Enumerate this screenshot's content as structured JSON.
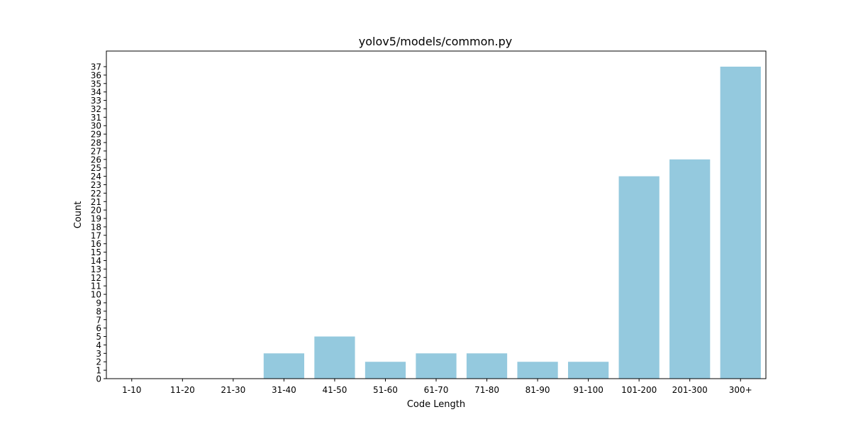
{
  "chart_data": {
    "type": "bar",
    "title": "yolov5/models/common.py",
    "xlabel": "Code Length",
    "ylabel": "Count",
    "categories": [
      "1-10",
      "11-20",
      "21-30",
      "31-40",
      "41-50",
      "51-60",
      "61-70",
      "71-80",
      "81-90",
      "91-100",
      "101-200",
      "201-300",
      "300+"
    ],
    "values": [
      0,
      0,
      0,
      3,
      5,
      2,
      3,
      3,
      2,
      2,
      24,
      26,
      37
    ],
    "ylim": [
      0,
      38.85
    ],
    "yticks": [
      0,
      1,
      2,
      3,
      4,
      5,
      6,
      7,
      8,
      9,
      10,
      11,
      12,
      13,
      14,
      15,
      16,
      17,
      18,
      19,
      20,
      21,
      22,
      23,
      24,
      25,
      26,
      27,
      28,
      29,
      30,
      31,
      32,
      33,
      34,
      35,
      36,
      37
    ],
    "bar_color": "#94c9de",
    "grid": false,
    "legend": "none"
  }
}
